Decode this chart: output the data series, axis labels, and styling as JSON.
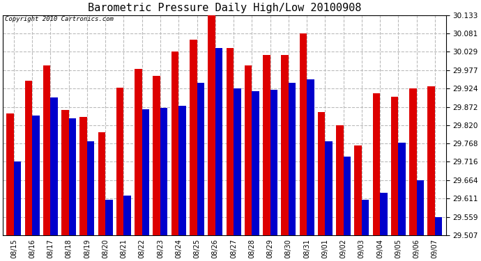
{
  "title": "Barometric Pressure Daily High/Low 20100908",
  "copyright": "Copyright 2010 Cartronics.com",
  "categories": [
    "08/15",
    "08/16",
    "08/17",
    "08/18",
    "08/19",
    "08/20",
    "08/21",
    "08/22",
    "08/23",
    "08/24",
    "08/25",
    "08/26",
    "08/27",
    "08/28",
    "08/29",
    "08/30",
    "08/31",
    "09/01",
    "09/02",
    "09/03",
    "09/04",
    "09/05",
    "09/06",
    "09/07"
  ],
  "highs": [
    29.853,
    29.947,
    29.99,
    29.863,
    29.843,
    29.8,
    29.927,
    29.98,
    29.96,
    30.029,
    30.063,
    30.133,
    30.04,
    29.99,
    30.02,
    30.02,
    30.081,
    29.858,
    29.82,
    29.762,
    29.91,
    29.9,
    29.924,
    29.93
  ],
  "lows": [
    29.716,
    29.848,
    29.898,
    29.84,
    29.775,
    29.607,
    29.62,
    29.865,
    29.87,
    29.875,
    29.94,
    30.04,
    29.924,
    29.916,
    29.92,
    29.94,
    29.95,
    29.775,
    29.73,
    29.607,
    29.627,
    29.77,
    29.664,
    29.559
  ],
  "ylim_min": 29.507,
  "ylim_max": 30.133,
  "yticks": [
    29.507,
    29.559,
    29.611,
    29.664,
    29.716,
    29.768,
    29.82,
    29.872,
    29.924,
    29.977,
    30.029,
    30.081,
    30.133
  ],
  "high_color": "#dd0000",
  "low_color": "#0000cc",
  "bg_color": "#ffffff",
  "grid_color": "#bbbbbb",
  "title_fontsize": 11,
  "bar_width": 0.4
}
